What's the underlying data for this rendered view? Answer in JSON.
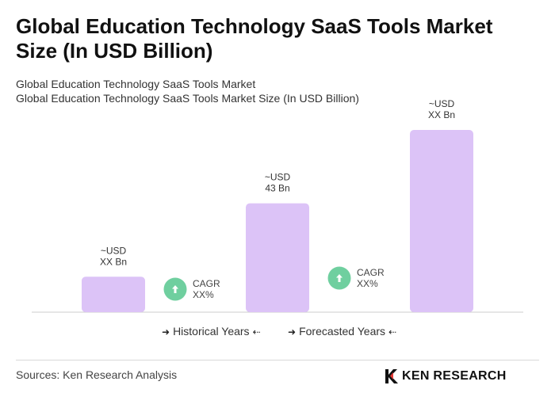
{
  "title": "Global Education Technology SaaS Tools Market Size (In USD Billion)",
  "subtitle_1": "Global Education Technology SaaS Tools Market",
  "subtitle_2": "Global Education Technology SaaS Tools Market Size (In USD Billion)",
  "legend": {
    "historical": "Historical Years",
    "forecasted": "Forecasted Years"
  },
  "sources": "Sources: Ken Research Analysis",
  "logo_text": "KEN RESEARCH",
  "colors": {
    "bar": "#dcc3f7",
    "cagr_circle": "#6fcf9f",
    "axis": "#cccccc"
  },
  "chart_data": {
    "type": "bar",
    "categories": [
      "",
      "",
      ""
    ],
    "values": [
      14,
      43,
      72
    ],
    "bar_labels": [
      [
        "~USD",
        "XX Bn"
      ],
      [
        "~USD",
        "43 Bn"
      ],
      [
        "~USD",
        "XX Bn"
      ]
    ],
    "cagr": [
      {
        "label": "CAGR",
        "value": "XX%",
        "icon": "up-arrow-icon"
      },
      {
        "label": "CAGR",
        "value": "XX%",
        "icon": "up-arrow-icon"
      }
    ],
    "title": "Global Education Technology SaaS Tools Market Size (In USD Billion)",
    "grid": false,
    "legend_placement": "bottom-center"
  }
}
